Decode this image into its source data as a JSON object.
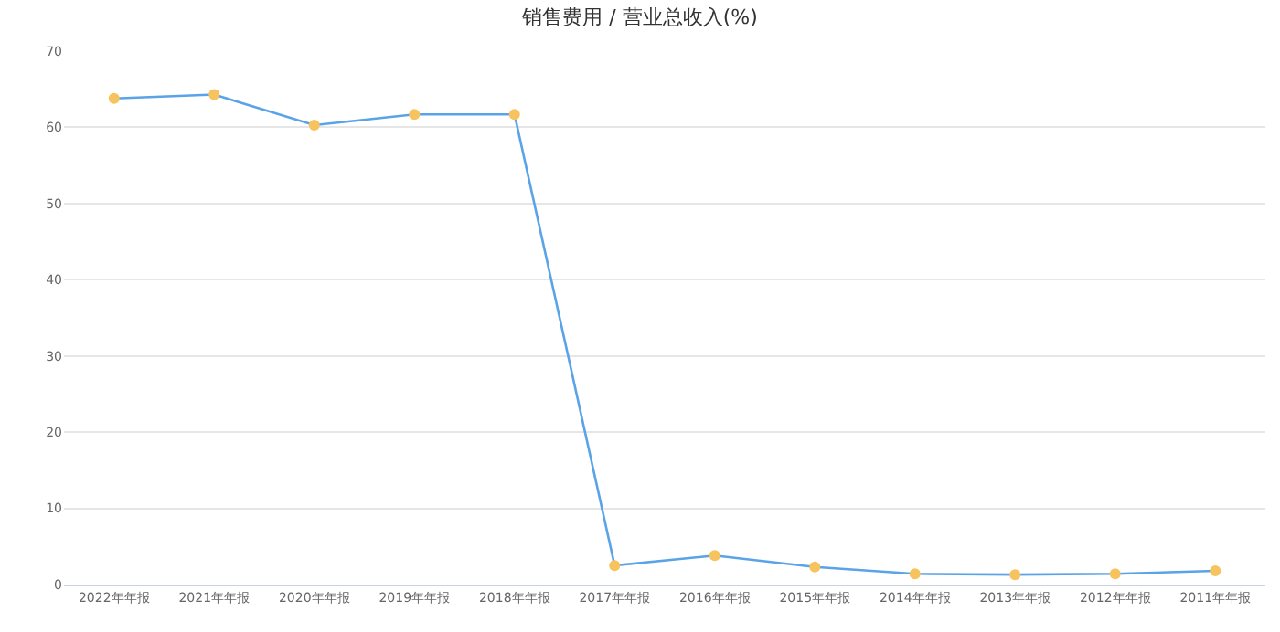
{
  "chart_data": {
    "type": "line",
    "title": "销售费用 / 营业总收入(%)",
    "categories": [
      "2022年年报",
      "2021年年报",
      "2020年年报",
      "2019年年报",
      "2018年年报",
      "2017年年报",
      "2016年年报",
      "2015年年报",
      "2014年年报",
      "2013年年报",
      "2012年年报",
      "2011年年报"
    ],
    "series": [
      {
        "color": "#5aa3e8",
        "colors": [
          "#f7c35f",
          "#f7c35f",
          "#f7c35f",
          "#f7c35f",
          "#f7c35f",
          "#f7c35f",
          "#f7c35f",
          "#f7c35f",
          "#f7c35f",
          "#f7c35f",
          "#f7c35f",
          "#f7c35f"
        ],
        "values": [
          63.8,
          64.3,
          60.3,
          61.7,
          61.7,
          2.5,
          3.8,
          2.3,
          1.4,
          1.3,
          1.4,
          1.8
        ]
      }
    ],
    "ylim": [
      0,
      70
    ],
    "yticks": [
      0,
      10,
      20,
      30,
      40,
      50,
      60,
      70
    ],
    "grid": "y",
    "marker": "circle",
    "line_style": "solid"
  }
}
